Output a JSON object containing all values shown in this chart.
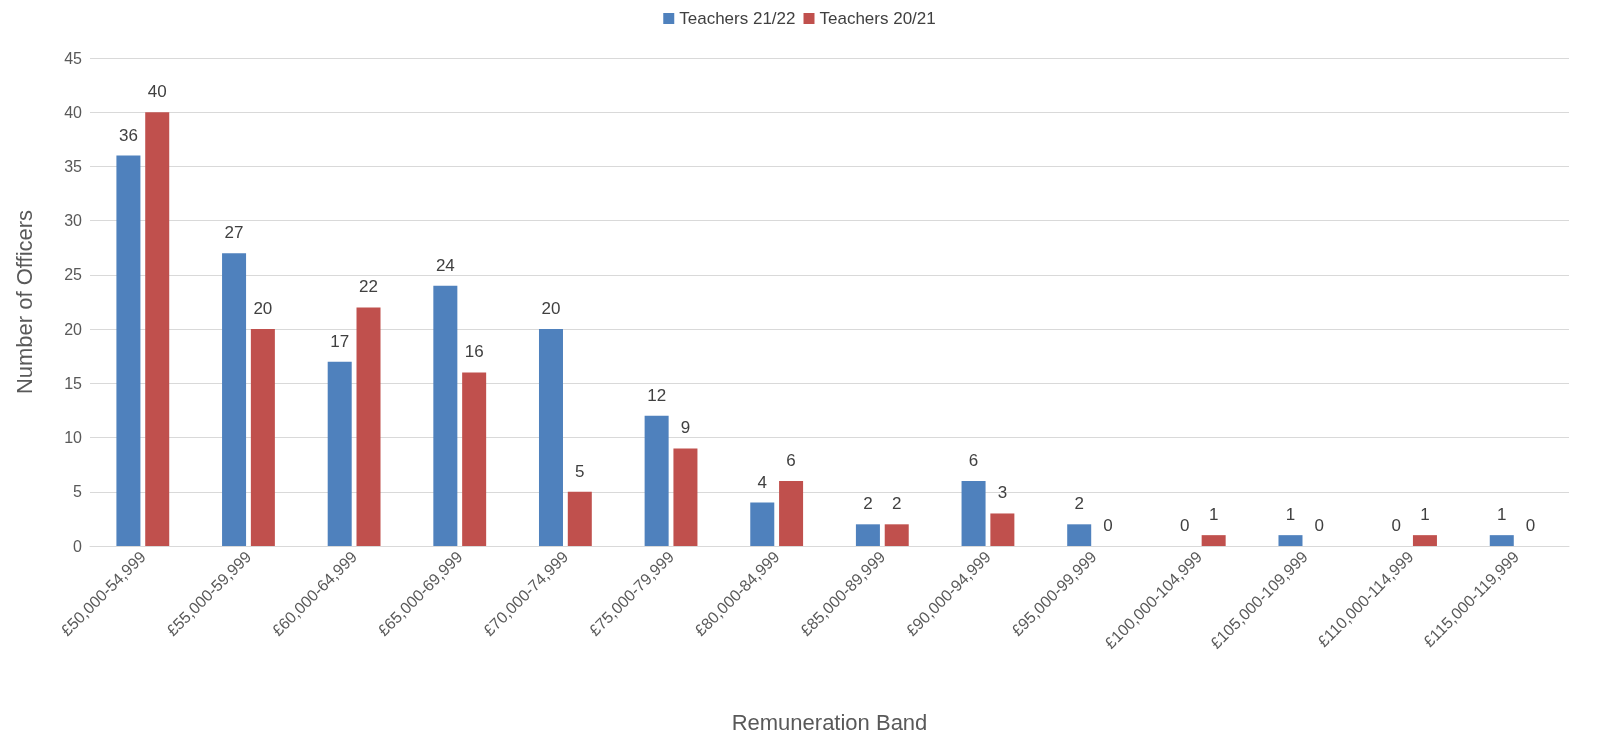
{
  "chart_data": {
    "type": "bar",
    "xlabel": "Remuneration Band",
    "ylabel": "Number of Officers",
    "categories": [
      "£50,000-54,999",
      "£55,000-59,999",
      "£60,000-64,999",
      "£65,000-69,999",
      "£70,000-74,999",
      "£75,000-79,999",
      "£80,000-84,999",
      "£85,000-89,999",
      "£90,000-94,999",
      "£95,000-99,999",
      "£100,000-104,999",
      "£105,000-109,999",
      "£110,000-114,999",
      "£115,000-119,999"
    ],
    "series": [
      {
        "name": "Teachers 21/22",
        "color": "#4f81bd",
        "values": [
          36,
          27,
          17,
          24,
          20,
          12,
          4,
          2,
          6,
          2,
          0,
          1,
          0,
          1
        ]
      },
      {
        "name": "Teachers 20/21",
        "color": "#c0504d",
        "values": [
          40,
          20,
          22,
          16,
          5,
          9,
          6,
          2,
          3,
          0,
          1,
          0,
          1,
          0
        ]
      }
    ],
    "ylim": [
      0,
      45
    ],
    "yticks": [
      0,
      5,
      10,
      15,
      20,
      25,
      30,
      35,
      40,
      45
    ],
    "grid": "y",
    "legend": "top",
    "data_labels": true
  }
}
